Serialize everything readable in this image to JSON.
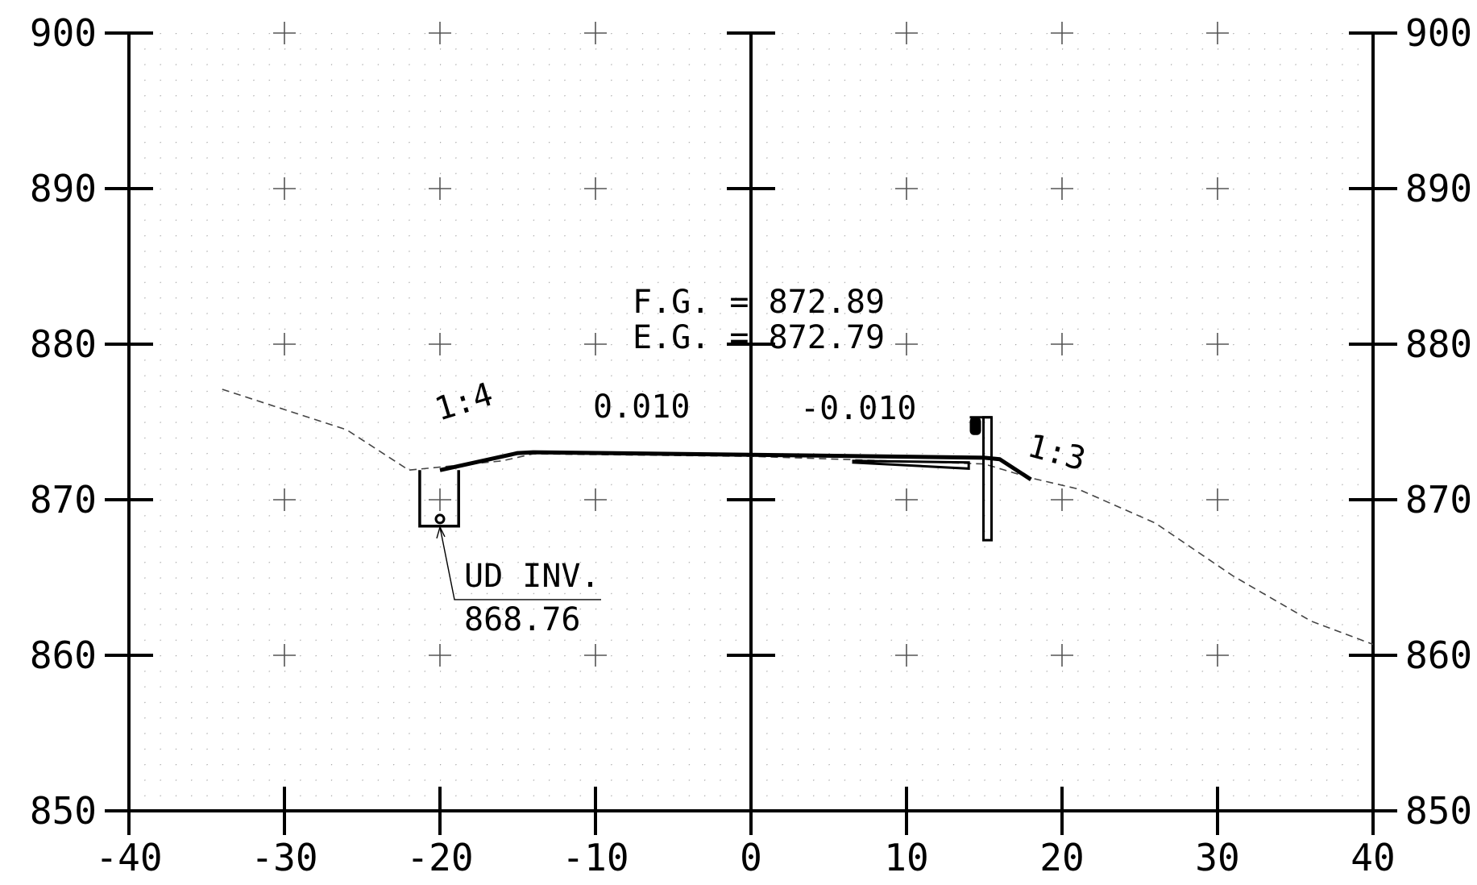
{
  "chart_data": {
    "type": "line",
    "x_ticks": [
      -40,
      -30,
      -20,
      -10,
      0,
      10,
      20,
      30,
      40
    ],
    "y_ticks": [
      850,
      860,
      870,
      880,
      890,
      900
    ],
    "xlim": [
      -40,
      40
    ],
    "ylim": [
      850,
      900
    ],
    "grid": "dotted, 1 ft spacing, crosses at 10 ft intersections",
    "series": [
      {
        "style": "dashed",
        "points": [
          [
            -34,
            877.1
          ],
          [
            -26,
            874.5
          ],
          [
            -22,
            871.9
          ],
          [
            -16,
            872.5
          ],
          [
            -14,
            872.95
          ],
          [
            0,
            872.79
          ],
          [
            15,
            872.3
          ],
          [
            18,
            871.4
          ],
          [
            21,
            870.7
          ],
          [
            26,
            868.5
          ],
          [
            31,
            865.1
          ],
          [
            36,
            862.2
          ],
          [
            40,
            860.7
          ]
        ]
      },
      {
        "style": "heavy",
        "points": [
          [
            -20,
            871.9
          ],
          [
            -15,
            873.0
          ],
          [
            -14,
            873.05
          ],
          [
            0,
            872.89
          ],
          [
            15,
            872.7
          ],
          [
            16,
            872.6
          ],
          [
            18,
            871.3
          ]
        ]
      }
    ],
    "annotations": {
      "finished_grade": "F.G. = 872.89",
      "existing_grade": "E.G. = 872.79",
      "slope_left_side": "1:4",
      "cross_slope_left": "0.010",
      "cross_slope_right": "-0.010",
      "slope_right_side": "1:3",
      "underdrain_label": "UD INV.",
      "underdrain_elevation": "868.76"
    },
    "underdrain": {
      "x": -20,
      "elevation": 868.76,
      "trench_x": [
        -21.3,
        -18.8
      ],
      "trench_y": [
        868.3,
        871.9
      ]
    },
    "guardrail_post": {
      "x": 15,
      "y": [
        867.4,
        875.3
      ]
    }
  }
}
